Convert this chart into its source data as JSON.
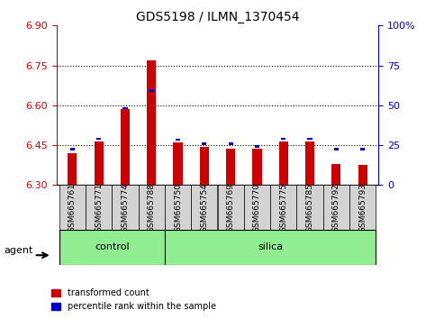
{
  "title": "GDS5198 / ILMN_1370454",
  "samples": [
    "GSM665761",
    "GSM665771",
    "GSM665774",
    "GSM665788",
    "GSM665750",
    "GSM665754",
    "GSM665769",
    "GSM665770",
    "GSM665775",
    "GSM665785",
    "GSM665792",
    "GSM665793"
  ],
  "groups": [
    "control",
    "control",
    "control",
    "control",
    "silica",
    "silica",
    "silica",
    "silica",
    "silica",
    "silica",
    "silica",
    "silica"
  ],
  "red_values": [
    6.42,
    6.465,
    6.585,
    6.77,
    6.46,
    6.445,
    6.435,
    6.435,
    6.465,
    6.465,
    6.38,
    6.375
  ],
  "blue_values": [
    6.435,
    6.475,
    6.59,
    6.655,
    6.47,
    6.455,
    6.455,
    6.445,
    6.475,
    6.475,
    6.435,
    6.435
  ],
  "ymin": 6.3,
  "ymax": 6.9,
  "yticks": [
    6.3,
    6.45,
    6.6,
    6.75,
    6.9
  ],
  "y2ticks": [
    0,
    25,
    50,
    75,
    100
  ],
  "y2labels": [
    "0",
    "25",
    "50",
    "75",
    "100%"
  ],
  "red_color": "#cc0000",
  "blue_color": "#0000cc",
  "bar_base": 6.3,
  "control_color": "#90ee90",
  "silica_color": "#90ee90",
  "sample_bg": "#d3d3d3",
  "legend_items": [
    "transformed count",
    "percentile rank within the sample"
  ]
}
